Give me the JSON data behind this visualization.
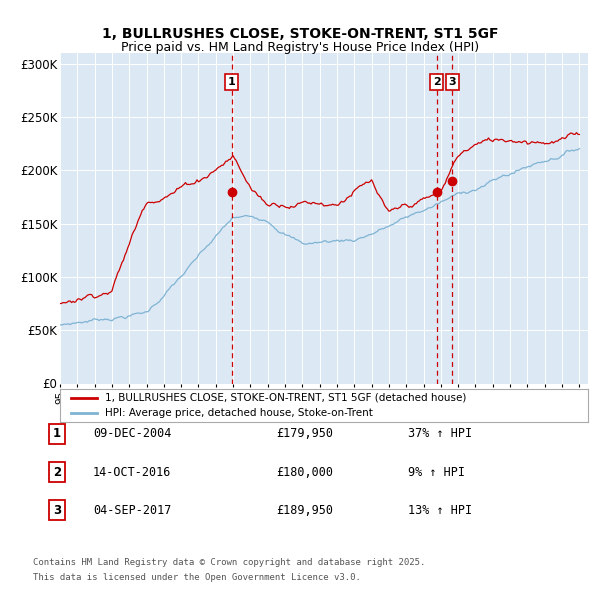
{
  "title": "1, BULLRUSHES CLOSE, STOKE-ON-TRENT, ST1 5GF",
  "subtitle": "Price paid vs. HM Land Registry's House Price Index (HPI)",
  "bg_color": "#dce9f5",
  "red_line_color": "#cc0000",
  "blue_line_color": "#7fb3d3",
  "dashed_line_color": "#cc0000",
  "marker_color": "#cc0000",
  "ylim": [
    0,
    310000
  ],
  "yticks": [
    0,
    50000,
    100000,
    150000,
    200000,
    250000,
    300000
  ],
  "ytick_labels": [
    "£0",
    "£50K",
    "£100K",
    "£150K",
    "£200K",
    "£250K",
    "£300K"
  ],
  "sale_dates": [
    "09-DEC-2004",
    "14-OCT-2016",
    "04-SEP-2017"
  ],
  "sale_prices": [
    179950,
    180000,
    189950
  ],
  "sale_price_strs": [
    "£179,950",
    "£180,000",
    "£189,950"
  ],
  "sale_pct": [
    "37%",
    "9%",
    "13%"
  ],
  "legend_label_red": "1, BULLRUSHES CLOSE, STOKE-ON-TRENT, ST1 5GF (detached house)",
  "legend_label_blue": "HPI: Average price, detached house, Stoke-on-Trent",
  "footer_line1": "Contains HM Land Registry data © Crown copyright and database right 2025.",
  "footer_line2": "This data is licensed under the Open Government Licence v3.0.",
  "xstart_year": 1995,
  "xend_year": 2025,
  "sale_month_indices": [
    119,
    261,
    272
  ],
  "hpi_knots_t": [
    0,
    0.167,
    0.333,
    0.4,
    0.467,
    0.567,
    0.733,
    1.0
  ],
  "hpi_knots_v": [
    55000,
    70000,
    155000,
    155000,
    135000,
    140000,
    175000,
    230000
  ],
  "red_knots_t": [
    0,
    0.1,
    0.167,
    0.267,
    0.333,
    0.367,
    0.4,
    0.467,
    0.533,
    0.567,
    0.6,
    0.633,
    0.733,
    0.767,
    0.8,
    1.0
  ],
  "red_knots_v": [
    75000,
    95000,
    180000,
    205000,
    230000,
    200000,
    185000,
    193000,
    195000,
    210000,
    215000,
    180000,
    195000,
    230000,
    240000,
    255000
  ],
  "noise_seed": 7,
  "noise_scale_blue": 600,
  "noise_scale_red": 900
}
